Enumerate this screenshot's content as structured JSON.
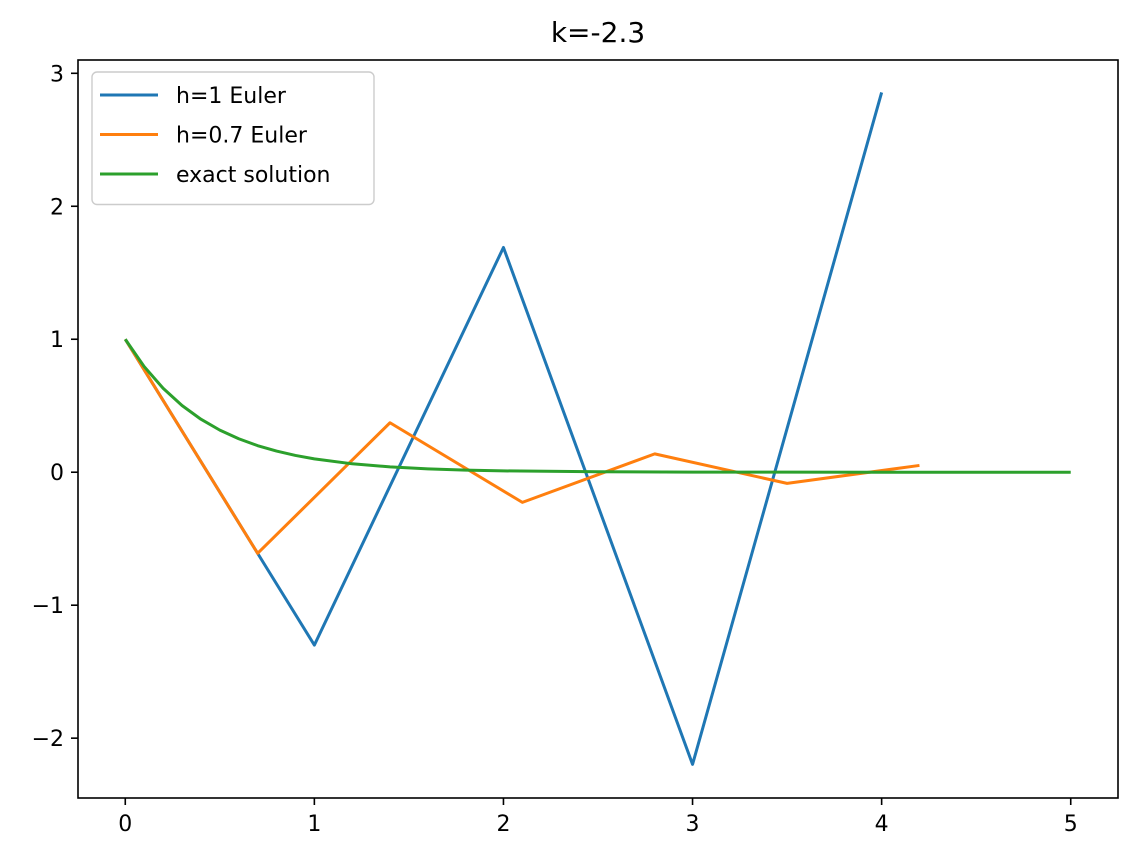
{
  "chart_data": {
    "type": "line",
    "title": "k=-2.3",
    "xlabel": "",
    "ylabel": "",
    "xlim": [
      -0.25,
      5.25
    ],
    "ylim": [
      -2.45,
      3.1
    ],
    "xticks": [
      0,
      1,
      2,
      3,
      4,
      5
    ],
    "xtick_labels": [
      "0",
      "1",
      "2",
      "3",
      "4",
      "5"
    ],
    "yticks": [
      -2,
      -1,
      0,
      1,
      2,
      3
    ],
    "ytick_labels": [
      "−2",
      "−1",
      "0",
      "1",
      "2",
      "3"
    ],
    "legend_position": "top-left",
    "grid": false,
    "series": [
      {
        "name": "h=1 Euler",
        "color": "#1f77b4",
        "x": [
          0,
          1,
          2,
          3,
          4
        ],
        "y": [
          1,
          -1.3,
          1.69,
          -2.197,
          2.856
        ]
      },
      {
        "name": "h=0.7 Euler",
        "color": "#ff7f0e",
        "x": [
          0,
          0.7,
          1.4,
          2.1,
          2.8,
          3.5,
          4.2
        ],
        "y": [
          1,
          -0.61,
          0.372,
          -0.227,
          0.138,
          -0.084,
          0.051
        ]
      },
      {
        "name": "exact solution",
        "color": "#2ca02c",
        "x": [
          0,
          0.1,
          0.2,
          0.3,
          0.4,
          0.5,
          0.6,
          0.7,
          0.8,
          0.9,
          1.0,
          1.2,
          1.4,
          1.6,
          1.8,
          2.0,
          2.5,
          3.0,
          3.5,
          4.0,
          4.5,
          5.0
        ],
        "y": [
          1,
          0.7945,
          0.6313,
          0.5016,
          0.3985,
          0.3166,
          0.2516,
          0.1999,
          0.1588,
          0.1262,
          0.1003,
          0.0633,
          0.04,
          0.0252,
          0.0159,
          0.01,
          0.0032,
          0.001,
          0.0003,
          0.0001,
          0.0,
          0.0
        ]
      }
    ]
  }
}
